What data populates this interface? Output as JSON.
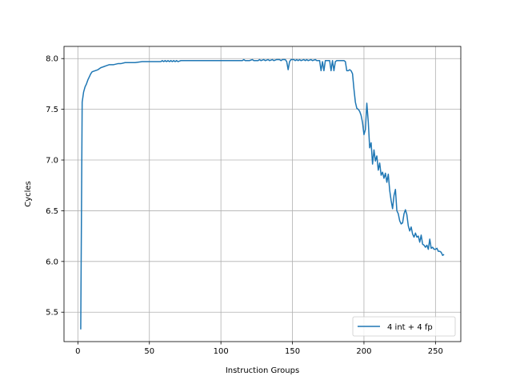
{
  "chart_data": {
    "type": "line",
    "title": "",
    "xlabel": "Instruction Groups",
    "ylabel": "Cycles",
    "xlim": [
      -9.7,
      267.7
    ],
    "ylim": [
      5.21,
      8.12
    ],
    "xticks": [
      0,
      50,
      100,
      150,
      200,
      250
    ],
    "yticks": [
      5.5,
      6.0,
      6.5,
      7.0,
      7.5,
      8.0
    ],
    "ytick_labels": [
      "5.5",
      "6.0",
      "6.5",
      "7.0",
      "7.5",
      "8.0"
    ],
    "grid": true,
    "legend_position": "lower-right",
    "color": "#1f77b4",
    "series": [
      {
        "name": "4 int + 4 fp",
        "points": [
          [
            2,
            5.33
          ],
          [
            3,
            7.57
          ],
          [
            4,
            7.67
          ],
          [
            5,
            7.72
          ],
          [
            6,
            7.75
          ],
          [
            7,
            7.79
          ],
          [
            8,
            7.82
          ],
          [
            9,
            7.85
          ],
          [
            10,
            7.87
          ],
          [
            12,
            7.88
          ],
          [
            14,
            7.89
          ],
          [
            16,
            7.91
          ],
          [
            18,
            7.92
          ],
          [
            20,
            7.93
          ],
          [
            22,
            7.94
          ],
          [
            25,
            7.94
          ],
          [
            28,
            7.95
          ],
          [
            30,
            7.95
          ],
          [
            33,
            7.96
          ],
          [
            36,
            7.96
          ],
          [
            40,
            7.96
          ],
          [
            45,
            7.97
          ],
          [
            50,
            7.97
          ],
          [
            55,
            7.97
          ],
          [
            58,
            7.97
          ],
          [
            59,
            7.98
          ],
          [
            60,
            7.97
          ],
          [
            61,
            7.98
          ],
          [
            62,
            7.97
          ],
          [
            63,
            7.98
          ],
          [
            64,
            7.97
          ],
          [
            65,
            7.98
          ],
          [
            66,
            7.97
          ],
          [
            67,
            7.98
          ],
          [
            68,
            7.97
          ],
          [
            69,
            7.98
          ],
          [
            70,
            7.97
          ],
          [
            72,
            7.98
          ],
          [
            80,
            7.98
          ],
          [
            90,
            7.98
          ],
          [
            100,
            7.98
          ],
          [
            110,
            7.98
          ],
          [
            115,
            7.98
          ],
          [
            116,
            7.99
          ],
          [
            117,
            7.98
          ],
          [
            120,
            7.98
          ],
          [
            122,
            7.99
          ],
          [
            123,
            7.98
          ],
          [
            126,
            7.98
          ],
          [
            127,
            7.99
          ],
          [
            128,
            7.98
          ],
          [
            130,
            7.99
          ],
          [
            131,
            7.98
          ],
          [
            133,
            7.99
          ],
          [
            134,
            7.98
          ],
          [
            136,
            7.99
          ],
          [
            137,
            7.98
          ],
          [
            139,
            7.99
          ],
          [
            141,
            7.99
          ],
          [
            142,
            7.98
          ],
          [
            143,
            7.99
          ],
          [
            145,
            7.99
          ],
          [
            146,
            7.97
          ],
          [
            147,
            7.89
          ],
          [
            148,
            7.97
          ],
          [
            149,
            7.99
          ],
          [
            151,
            7.99
          ],
          [
            152,
            7.98
          ],
          [
            153,
            7.99
          ],
          [
            154,
            7.98
          ],
          [
            155,
            7.99
          ],
          [
            156,
            7.98
          ],
          [
            158,
            7.99
          ],
          [
            159,
            7.98
          ],
          [
            160,
            7.99
          ],
          [
            161,
            7.98
          ],
          [
            163,
            7.99
          ],
          [
            164,
            7.98
          ],
          [
            166,
            7.99
          ],
          [
            167,
            7.98
          ],
          [
            169,
            7.98
          ],
          [
            170,
            7.88
          ],
          [
            171,
            7.97
          ],
          [
            172,
            7.88
          ],
          [
            173,
            7.98
          ],
          [
            175,
            7.98
          ],
          [
            176,
            7.98
          ],
          [
            177,
            7.88
          ],
          [
            178,
            7.98
          ],
          [
            179,
            7.88
          ],
          [
            180,
            7.97
          ],
          [
            181,
            7.98
          ],
          [
            183,
            7.98
          ],
          [
            184,
            7.98
          ],
          [
            185,
            7.98
          ],
          [
            186,
            7.98
          ],
          [
            187,
            7.97
          ],
          [
            188,
            7.88
          ],
          [
            189,
            7.88
          ],
          [
            190,
            7.89
          ],
          [
            191,
            7.88
          ],
          [
            192,
            7.85
          ],
          [
            193,
            7.7
          ],
          [
            194,
            7.57
          ],
          [
            195,
            7.51
          ],
          [
            196,
            7.5
          ],
          [
            197,
            7.48
          ],
          [
            198,
            7.44
          ],
          [
            199,
            7.37
          ],
          [
            200,
            7.25
          ],
          [
            201,
            7.3
          ],
          [
            202,
            7.56
          ],
          [
            203,
            7.38
          ],
          [
            204,
            7.12
          ],
          [
            205,
            7.17
          ],
          [
            206,
            6.96
          ],
          [
            207,
            7.1
          ],
          [
            208,
            6.99
          ],
          [
            209,
            7.04
          ],
          [
            210,
            6.9
          ],
          [
            211,
            6.97
          ],
          [
            212,
            6.85
          ],
          [
            213,
            6.88
          ],
          [
            214,
            6.82
          ],
          [
            215,
            6.87
          ],
          [
            216,
            6.78
          ],
          [
            217,
            6.86
          ],
          [
            218,
            6.7
          ],
          [
            219,
            6.6
          ],
          [
            220,
            6.52
          ],
          [
            221,
            6.65
          ],
          [
            222,
            6.71
          ],
          [
            223,
            6.5
          ],
          [
            224,
            6.47
          ],
          [
            225,
            6.4
          ],
          [
            226,
            6.37
          ],
          [
            227,
            6.38
          ],
          [
            228,
            6.47
          ],
          [
            229,
            6.51
          ],
          [
            230,
            6.46
          ],
          [
            231,
            6.35
          ],
          [
            232,
            6.3
          ],
          [
            233,
            6.34
          ],
          [
            234,
            6.27
          ],
          [
            235,
            6.24
          ],
          [
            236,
            6.28
          ],
          [
            237,
            6.24
          ],
          [
            238,
            6.25
          ],
          [
            239,
            6.19
          ],
          [
            240,
            6.26
          ],
          [
            241,
            6.17
          ],
          [
            242,
            6.16
          ],
          [
            243,
            6.14
          ],
          [
            244,
            6.16
          ],
          [
            245,
            6.12
          ],
          [
            246,
            6.22
          ],
          [
            247,
            6.13
          ],
          [
            248,
            6.14
          ],
          [
            249,
            6.12
          ],
          [
            250,
            6.12
          ],
          [
            251,
            6.13
          ],
          [
            252,
            6.1
          ],
          [
            253,
            6.1
          ],
          [
            254,
            6.09
          ],
          [
            255,
            6.06
          ],
          [
            256,
            6.07
          ]
        ]
      }
    ]
  }
}
